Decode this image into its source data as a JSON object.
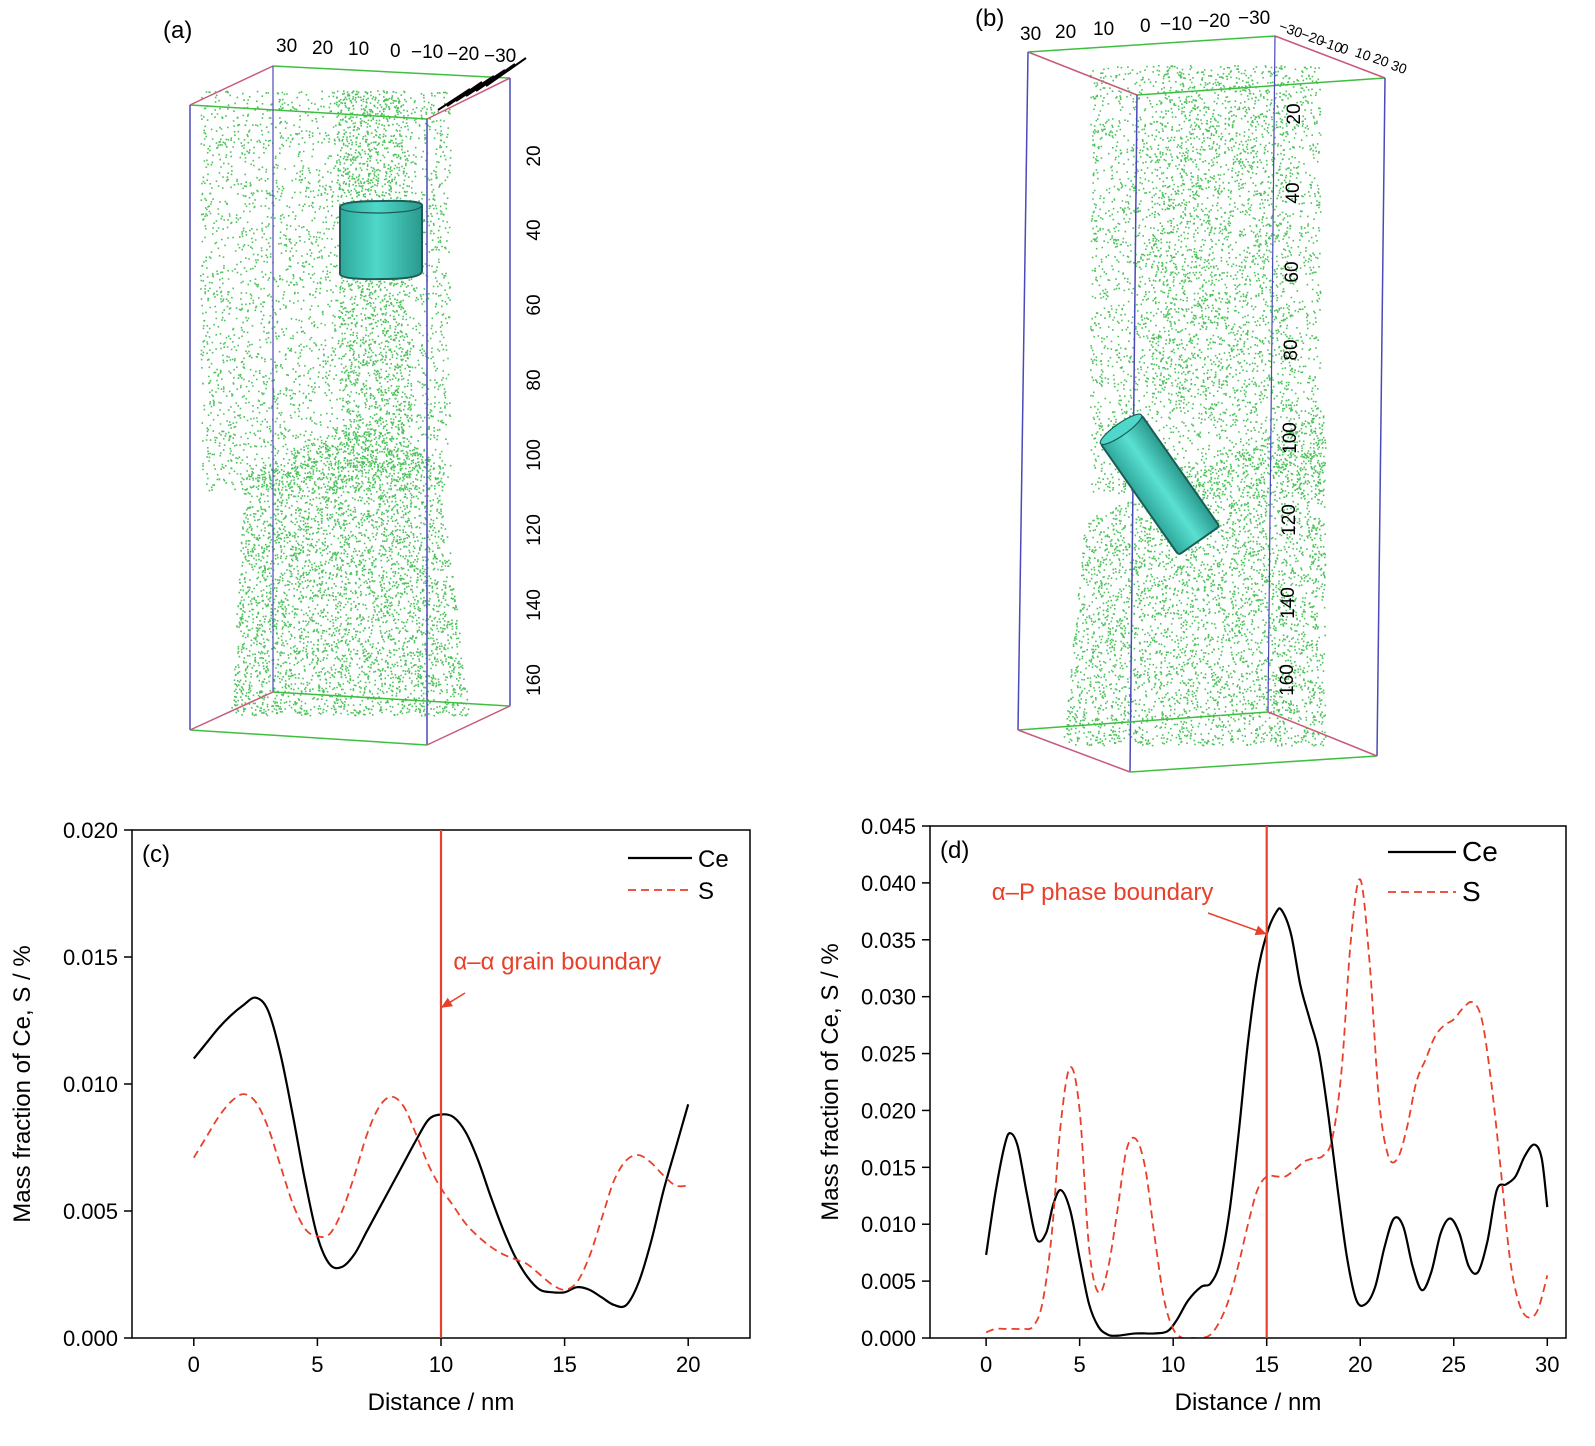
{
  "panels_3d": [
    {
      "label": "(a)",
      "top_ticks": [
        "30",
        "20",
        "10",
        "0",
        "−10",
        "−20",
        "−30"
      ],
      "depth_ticks": [
        "20",
        "40",
        "60",
        "80",
        "100",
        "120",
        "140",
        "160"
      ],
      "point_color": "#4cc35a",
      "cylinder_color": "#3fc7b8"
    },
    {
      "label": "(b)",
      "top_ticks": [
        "30",
        "20",
        "10",
        "0",
        "−10",
        "−20",
        "−30"
      ],
      "side_ticks": [
        "−30",
        "−20",
        "−10",
        "0",
        "10",
        "20",
        "30"
      ],
      "depth_ticks": [
        "20",
        "40",
        "60",
        "80",
        "100",
        "120",
        "140",
        "160"
      ],
      "point_color": "#4cc35a",
      "cylinder_color": "#3fc7b8"
    }
  ],
  "chart_data": [
    {
      "type": "line",
      "panel_label": "(c)",
      "xlabel": "Distance / nm",
      "ylabel": "Mass fraction of Ce, S / %",
      "xlim": [
        -2.5,
        22.5
      ],
      "ylim": [
        0,
        0.02
      ],
      "xticks": [
        0,
        5,
        10,
        15,
        20
      ],
      "yticks": [
        0.0,
        0.005,
        0.01,
        0.015,
        0.02
      ],
      "ytick_labels": [
        "0.000",
        "0.005",
        "0.010",
        "0.015",
        "0.020"
      ],
      "grid": false,
      "legend_position": "top-right",
      "series": [
        {
          "name": "Ce",
          "color": "#000000",
          "style": "solid",
          "x": [
            0,
            0.5,
            1,
            1.5,
            2,
            2.5,
            3,
            3.5,
            4,
            4.5,
            5,
            5.5,
            6,
            6.5,
            7,
            7.5,
            8,
            8.5,
            9,
            9.5,
            10,
            10.5,
            11,
            11.5,
            12,
            12.5,
            13,
            13.5,
            14,
            14.5,
            15,
            15.5,
            16,
            16.5,
            17,
            17.5,
            18,
            18.5,
            19,
            19.5,
            20
          ],
          "y": [
            0.011,
            0.0116,
            0.0122,
            0.0127,
            0.0131,
            0.0134,
            0.0129,
            0.0112,
            0.0088,
            0.0062,
            0.004,
            0.0029,
            0.0028,
            0.0033,
            0.0042,
            0.0051,
            0.006,
            0.0069,
            0.0078,
            0.0086,
            0.0088,
            0.0087,
            0.0081,
            0.007,
            0.0056,
            0.0043,
            0.0032,
            0.0024,
            0.0019,
            0.0018,
            0.0018,
            0.002,
            0.0019,
            0.0016,
            0.0013,
            0.0013,
            0.0022,
            0.0038,
            0.0058,
            0.0075,
            0.0092
          ]
        },
        {
          "name": "S",
          "color": "#e8402a",
          "style": "dashed",
          "x": [
            0,
            0.5,
            1,
            1.5,
            2,
            2.5,
            3,
            3.5,
            4,
            4.5,
            5,
            5.5,
            6,
            6.5,
            7,
            7.5,
            8,
            8.5,
            9,
            9.5,
            10,
            10.5,
            11,
            11.5,
            12,
            12.5,
            13,
            13.5,
            14,
            14.5,
            15,
            15.5,
            16,
            16.5,
            17,
            17.5,
            18,
            18.5,
            19,
            19.5,
            20
          ],
          "y": [
            0.0071,
            0.0079,
            0.0087,
            0.0093,
            0.0096,
            0.0093,
            0.0083,
            0.0068,
            0.0053,
            0.0043,
            0.004,
            0.0041,
            0.005,
            0.0064,
            0.008,
            0.0091,
            0.0095,
            0.0091,
            0.008,
            0.0068,
            0.0059,
            0.0052,
            0.0045,
            0.004,
            0.0036,
            0.0033,
            0.0031,
            0.0029,
            0.0025,
            0.0021,
            0.0019,
            0.0022,
            0.0032,
            0.0047,
            0.0062,
            0.007,
            0.0072,
            0.0069,
            0.0064,
            0.006,
            0.006
          ]
        }
      ],
      "annotations": [
        {
          "type": "vline",
          "x": 10,
          "color": "#e8402a"
        },
        {
          "type": "text",
          "text": "α–α grain boundary",
          "x": 10.5,
          "y": 0.0145,
          "color": "#e8402a",
          "arrow_to": [
            10,
            0.013
          ]
        }
      ]
    },
    {
      "type": "line",
      "panel_label": "(d)",
      "xlabel": "Distance / nm",
      "ylabel": "Mass fraction of Ce, S / %",
      "xlim": [
        -3,
        31
      ],
      "ylim": [
        0,
        0.045
      ],
      "xticks": [
        0,
        5,
        10,
        15,
        20,
        25,
        30
      ],
      "yticks": [
        0.0,
        0.005,
        0.01,
        0.015,
        0.02,
        0.025,
        0.03,
        0.035,
        0.04,
        0.045
      ],
      "ytick_labels": [
        "0.000",
        "0.005",
        "0.010",
        "0.015",
        "0.020",
        "0.025",
        "0.030",
        "0.035",
        "0.040",
        "0.045"
      ],
      "grid": false,
      "legend_position": "top-right",
      "series": [
        {
          "name": "Ce",
          "color": "#000000",
          "style": "solid",
          "x": [
            0,
            0.5,
            1,
            1.3,
            1.7,
            2.2,
            2.7,
            3.2,
            3.6,
            4,
            4.5,
            5,
            5.5,
            6,
            6.5,
            7,
            8,
            9,
            9.7,
            10.2,
            10.8,
            11.5,
            12,
            12.5,
            13,
            13.5,
            14,
            14.5,
            15,
            15.5,
            15.8,
            16.3,
            16.8,
            17.3,
            17.8,
            18.3,
            18.8,
            19.3,
            19.8,
            20.3,
            20.8,
            21.3,
            21.8,
            22.3,
            22.8,
            23.3,
            23.8,
            24.3,
            24.8,
            25.3,
            25.8,
            26.3,
            26.8,
            27.3,
            27.8,
            28.3,
            28.8,
            29.3,
            29.7,
            30
          ],
          "y": [
            0.0073,
            0.0128,
            0.017,
            0.018,
            0.0168,
            0.0125,
            0.0087,
            0.0092,
            0.0118,
            0.013,
            0.0112,
            0.007,
            0.003,
            0.001,
            0.0003,
            0.0002,
            0.0004,
            0.0004,
            0.0006,
            0.0016,
            0.0033,
            0.0045,
            0.0048,
            0.0066,
            0.011,
            0.018,
            0.026,
            0.032,
            0.0355,
            0.0374,
            0.0376,
            0.0355,
            0.031,
            0.028,
            0.025,
            0.0195,
            0.013,
            0.007,
            0.0033,
            0.003,
            0.0045,
            0.008,
            0.0105,
            0.0098,
            0.0063,
            0.0042,
            0.0058,
            0.0092,
            0.0105,
            0.0092,
            0.0063,
            0.0058,
            0.0085,
            0.013,
            0.0135,
            0.0142,
            0.016,
            0.017,
            0.0158,
            0.0115
          ]
        },
        {
          "name": "S",
          "color": "#e8402a",
          "style": "dashed",
          "x": [
            0,
            0.5,
            1,
            1.5,
            2,
            2.5,
            3,
            3.5,
            4,
            4.5,
            5,
            5.5,
            6,
            6.5,
            7,
            7.5,
            8,
            8.5,
            9,
            9.5,
            10,
            10.5,
            11,
            11.5,
            12,
            12.5,
            13,
            13.5,
            14,
            14.5,
            15,
            15.5,
            16,
            16.5,
            17,
            17.5,
            18,
            18.5,
            19,
            19.5,
            20,
            20.5,
            21,
            21.5,
            22,
            22.5,
            23,
            23.5,
            24,
            24.5,
            25,
            25.5,
            26,
            26.5,
            27,
            27.5,
            28,
            28.5,
            29,
            29.5,
            30
          ],
          "y": [
            0.0005,
            0.0008,
            0.0008,
            0.0008,
            0.0008,
            0.001,
            0.003,
            0.009,
            0.019,
            0.0238,
            0.02,
            0.008,
            0.004,
            0.006,
            0.011,
            0.0165,
            0.0175,
            0.015,
            0.009,
            0.0035,
            0.0008,
            0.0,
            0.0,
            0.0,
            0.0003,
            0.0015,
            0.0035,
            0.0065,
            0.01,
            0.013,
            0.0142,
            0.0142,
            0.0142,
            0.0148,
            0.0155,
            0.0158,
            0.016,
            0.0175,
            0.0235,
            0.035,
            0.0403,
            0.033,
            0.021,
            0.016,
            0.0158,
            0.0185,
            0.0225,
            0.0245,
            0.0265,
            0.0275,
            0.028,
            0.029,
            0.0295,
            0.028,
            0.0225,
            0.015,
            0.007,
            0.003,
            0.0018,
            0.0025,
            0.0055
          ]
        }
      ],
      "annotations": [
        {
          "type": "vline",
          "x": 15,
          "color": "#e8402a"
        },
        {
          "type": "text",
          "text": "α–P phase boundary",
          "x": 0.3,
          "y": 0.0385,
          "color": "#e8402a",
          "arrow_to": [
            15,
            0.0355
          ]
        }
      ]
    }
  ]
}
